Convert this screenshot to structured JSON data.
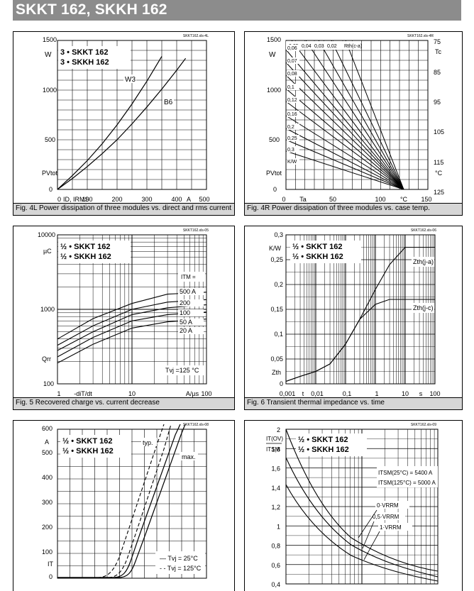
{
  "page": {
    "title": "SKKT 162, SKKH 162"
  },
  "figures": [
    {
      "caption": "Fig. 4L Power dissipation of three modules vs. direct and rms current",
      "file_label": "SKKT162.xls-4L",
      "legend": [
        "3 • SKKT 162",
        "3 • SKKH 162"
      ],
      "y_unit": "W",
      "y_name": "PVtot",
      "y_ticks": [
        "1500",
        "1000",
        "500",
        "0"
      ],
      "x_ticks": [
        "100",
        "200",
        "300",
        "400",
        "500"
      ],
      "x_name": "ID, IRMS",
      "x_zero": "0",
      "x_unit": "A",
      "curve_labels": [
        "W3",
        "B6"
      ]
    },
    {
      "caption": "Fig. 4R Power dissipation of three modules vs. case temp.",
      "file_label": "SKKT162.xls-4R",
      "y_unit": "W",
      "y_name": "PVtot",
      "y_ticks": [
        "1500",
        "1000",
        "500",
        "0"
      ],
      "x_ticks": [
        "0",
        "50",
        "100",
        "150"
      ],
      "x_name": "Ta",
      "x_unit": "°C",
      "right_ticks": [
        "75",
        "85",
        "95",
        "105",
        "115",
        "125"
      ],
      "right_name": "Tc",
      "right_unit": "°C",
      "rth_label": "Rth(c-a)",
      "rth_top": [
        "0,05",
        "0,04",
        "0,03",
        "0,02"
      ],
      "rth_left": [
        "0,06",
        "0,07",
        "0,08",
        "0,1",
        "0,12",
        "0,16",
        "0,2",
        "0,25",
        "0,3",
        "K/W"
      ]
    },
    {
      "caption": "Fig. 5 Recovered charge vs. current decrease",
      "file_label": "SKKT162.xls-05",
      "legend": [
        "½ • SKKT 162",
        "½ • SKKH 162"
      ],
      "y_unit": "µC",
      "y_name": "Qrr",
      "y_ticks": [
        "10000",
        "1000",
        "100"
      ],
      "x_ticks": [
        "1",
        "10",
        "100"
      ],
      "x_name": "-diT/dt",
      "x_unit": "A/µs",
      "itm_label": "ITM =",
      "itm_values": [
        "500 A",
        "200",
        "100",
        "50 A",
        "20 A"
      ],
      "condition": "Tvj =125 °C"
    },
    {
      "caption": "Fig. 6 Transient thermal impedance vs. time",
      "file_label": "SKKT162.xls-06",
      "legend": [
        "½ • SKKT 162",
        "½ • SKKH 162"
      ],
      "y_unit": "K/W",
      "y_name": "Zth",
      "y_ticks": [
        "0,3",
        "0,25",
        "0,2",
        "0,15",
        "0,1",
        "0,05",
        "0"
      ],
      "x_ticks": [
        "0,001",
        "0,01",
        "0,1",
        "1",
        "10",
        "100"
      ],
      "x_name": "t",
      "x_unit": "s",
      "curve_labels": [
        "Zth(j-a)",
        "Zth(j-c)"
      ]
    },
    {
      "caption": "",
      "file_label": "SKKT162.xls-08",
      "legend": [
        "½ • SKKT 162",
        "½ • SKKH 162"
      ],
      "y_unit": "A",
      "y_name": "IT",
      "y_ticks": [
        "600",
        "500",
        "400",
        "300",
        "200",
        "100",
        "0"
      ],
      "curve_labels": [
        "typ.",
        "max."
      ],
      "key": [
        "— Tvj =  25°C",
        "- - Tvj = 125°C"
      ]
    },
    {
      "caption": "",
      "file_label": "SKKT162.xls-09",
      "legend": [
        "½ • SKKT 162",
        "½ • SKKH 162"
      ],
      "y_ticks": [
        "2",
        "1,8",
        "1,6",
        "1,4",
        "1,2",
        "1",
        "0,8",
        "0,6",
        "0,4"
      ],
      "y_name_top": "IT(OV)",
      "y_name_bottom": "ITSM",
      "itsm": [
        "ITSM(25°C) = 5400 A",
        "ITSM(125°C) = 5000 A"
      ],
      "curve_labels": [
        "0·VRRM",
        "0,5·VRRM",
        "1·VRRM"
      ]
    }
  ],
  "chart_data": [
    {
      "type": "line",
      "title": "",
      "xlabel": "ID, IRMS",
      "ylabel": "PVtot",
      "xlim": [
        0,
        500
      ],
      "ylim": [
        0,
        1500
      ],
      "series": [
        {
          "name": "W3",
          "x": [
            0,
            50,
            100,
            150,
            200,
            250,
            300,
            350
          ],
          "y": [
            0,
            140,
            290,
            460,
            650,
            860,
            1090,
            1340
          ]
        },
        {
          "name": "B6",
          "x": [
            0,
            50,
            100,
            150,
            200,
            250,
            300,
            350,
            400,
            430
          ],
          "y": [
            0,
            110,
            230,
            360,
            500,
            660,
            830,
            1010,
            1200,
            1320
          ]
        }
      ]
    },
    {
      "type": "line",
      "title": "",
      "xlabel": "Ta",
      "ylabel": "PVtot",
      "xlim": [
        0,
        150
      ],
      "ylim": [
        0,
        1500
      ],
      "series": [
        {
          "name": "Rth(c-a)",
          "values": [
            "0,02",
            "0,03",
            "0,04",
            "0,05",
            "0,06",
            "0,07",
            "0,08",
            "0,1",
            "0,12",
            "0,16",
            "0,2",
            "0,25",
            "0,3"
          ]
        }
      ]
    },
    {
      "type": "line",
      "title": "",
      "xlabel": "-diT/dt",
      "ylabel": "Qrr",
      "xlim": [
        1,
        100
      ],
      "ylim": [
        100,
        10000
      ],
      "series": [
        {
          "name": "500 A",
          "x": [
            1,
            3,
            10,
            30,
            100
          ],
          "y": [
            400,
            750,
            1200,
            1600,
            1700
          ]
        },
        {
          "name": "200",
          "x": [
            1,
            3,
            10,
            30,
            100
          ],
          "y": [
            330,
            600,
            1000,
            1250,
            1350
          ]
        },
        {
          "name": "100",
          "x": [
            1,
            3,
            10,
            30,
            100
          ],
          "y": [
            280,
            500,
            850,
            1050,
            1150
          ]
        },
        {
          "name": "50 A",
          "x": [
            1,
            3,
            10,
            30,
            100
          ],
          "y": [
            230,
            420,
            700,
            850,
            920
          ]
        },
        {
          "name": "20 A",
          "x": [
            1,
            3,
            10,
            30,
            100
          ],
          "y": [
            190,
            340,
            560,
            680,
            740
          ]
        }
      ]
    },
    {
      "type": "line",
      "title": "",
      "xlabel": "t",
      "ylabel": "Zth",
      "xlim": [
        0.001,
        100
      ],
      "ylim": [
        0,
        0.3
      ],
      "series": [
        {
          "name": "Zth(j-a)",
          "x": [
            0.001,
            0.003,
            0.01,
            0.03,
            0.1,
            0.3,
            1,
            3,
            10,
            100
          ],
          "y": [
            0.005,
            0.015,
            0.025,
            0.04,
            0.08,
            0.13,
            0.19,
            0.24,
            0.275,
            0.275
          ]
        },
        {
          "name": "Zth(j-c)",
          "x": [
            0.001,
            0.003,
            0.01,
            0.03,
            0.1,
            0.3,
            1,
            3,
            10,
            100
          ],
          "y": [
            0.005,
            0.015,
            0.025,
            0.04,
            0.08,
            0.13,
            0.16,
            0.17,
            0.17,
            0.17
          ]
        }
      ]
    },
    {
      "type": "line",
      "title": "",
      "xlabel": "",
      "ylabel": "IT",
      "ylim": [
        0,
        600
      ],
      "series": [
        {
          "name": "typ.",
          "values": []
        },
        {
          "name": "max.",
          "values": []
        }
      ]
    },
    {
      "type": "line",
      "title": "",
      "xlabel": "",
      "ylabel": "IT(OV)/ITSM",
      "ylim": [
        0.4,
        2
      ],
      "series": [
        {
          "name": "0·VRRM",
          "values": []
        },
        {
          "name": "0,5·VRRM",
          "values": []
        },
        {
          "name": "1·VRRM",
          "values": []
        }
      ]
    }
  ]
}
